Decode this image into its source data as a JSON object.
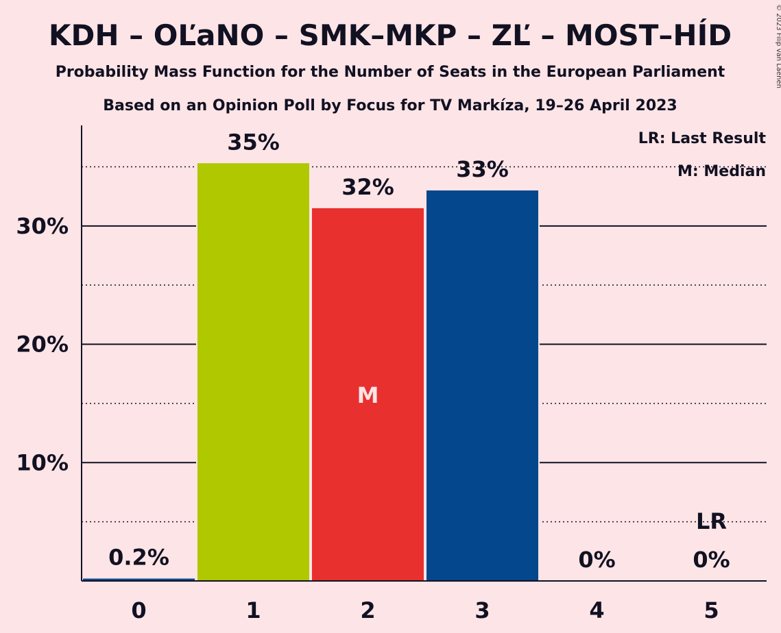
{
  "chart_data": {
    "type": "bar",
    "title": "KDH – OĽaNO – SMK–MKP – ZĽ – MOST–HÍD",
    "subtitle": "Probability Mass Function for the Number of Seats in the European Parliament",
    "subtitle2": "Based on an Opinion Poll by Focus for TV Markíza, 19–26 April 2023",
    "copyright": "© 2023 Filip van Laenen",
    "categories": [
      "0",
      "1",
      "2",
      "3",
      "4",
      "5"
    ],
    "values": [
      0.2,
      35.3,
      31.5,
      33.0,
      0,
      0
    ],
    "value_labels": [
      "0.2%",
      "35%",
      "32%",
      "33%",
      "0%",
      "0%"
    ],
    "bar_colors": [
      "#0c4a8e",
      "#b0c800",
      "#e8302f",
      "#05478c",
      "#05478c",
      "#05478c"
    ],
    "ylim": [
      0,
      38.5
    ],
    "yticks": [
      10,
      20,
      30
    ],
    "ytick_labels": [
      "10%",
      "20%",
      "30%"
    ],
    "dotted_lines": [
      5,
      15,
      25,
      35
    ],
    "median_index": 2,
    "median_marker": "M",
    "last_result_index": 5,
    "last_result_marker": "LR",
    "legend": {
      "position": "top-right",
      "lr": "LR: Last Result",
      "m": "M: Median"
    },
    "xlabel": "",
    "ylabel": "",
    "grid": true
  }
}
